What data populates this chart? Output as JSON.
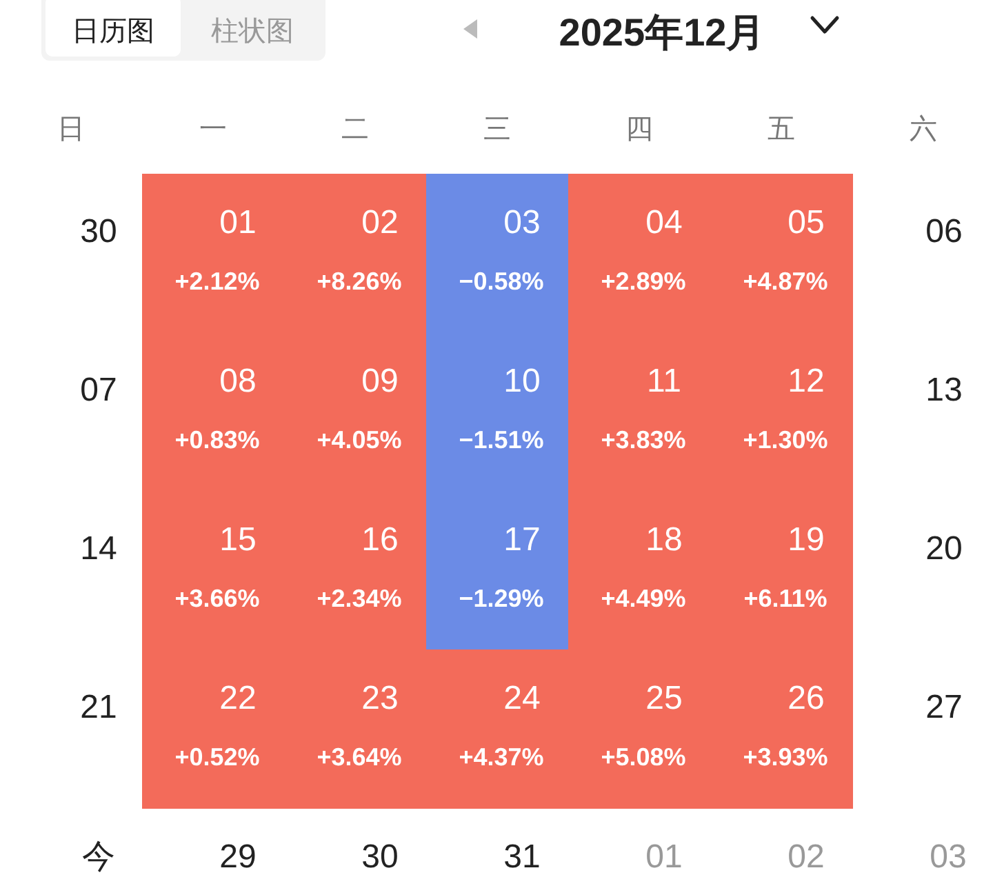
{
  "chart_data": {
    "type": "heatmap",
    "title": "2025年12月",
    "annotations": [
      "日历图",
      "柱状图",
      "日",
      "六",
      "今",
      "29",
      "30",
      "31",
      "01",
      "02",
      "03",
      "01",
      "02",
      "03",
      "04",
      "05",
      "08",
      "09",
      "10",
      "11",
      "12",
      "15",
      "16",
      "17",
      "18",
      "19",
      "22",
      "23",
      "24",
      "25",
      "26"
    ],
    "categories": [
      "一",
      "二",
      "三",
      "四",
      "五"
    ],
    "y_categories": [
      "30",
      "07",
      "14",
      "21"
    ],
    "y2_categories": [
      "06",
      "13",
      "20",
      "27"
    ],
    "colors": [
      "#6b8be6",
      "#f36b5a"
    ],
    "cells": [
      [
        2.12,
        8.26,
        -0.58,
        2.89,
        4.87
      ],
      [
        0.83,
        4.05,
        -1.51,
        3.83,
        1.3
      ],
      [
        3.66,
        2.34,
        -1.29,
        4.49,
        6.11
      ],
      [
        0.52,
        3.64,
        4.37,
        5.08,
        3.93
      ]
    ],
    "cell_labels": [
      [
        "+2.12%",
        "+8.26%",
        "−0.58%",
        "+2.89%",
        "+4.87%"
      ],
      [
        "+0.83%",
        "+4.05%",
        "−1.51%",
        "+3.83%",
        "+1.30%"
      ],
      [
        "+3.66%",
        "+2.34%",
        "−1.29%",
        "+4.49%",
        "+6.11%"
      ],
      [
        "+0.52%",
        "+3.64%",
        "+4.37%",
        "+5.08%",
        "+3.93%"
      ]
    ]
  }
}
